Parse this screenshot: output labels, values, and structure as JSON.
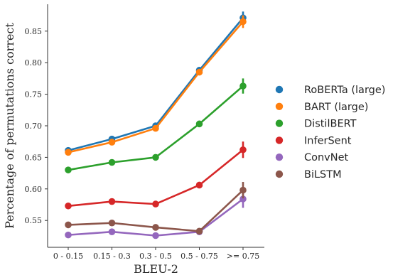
{
  "chart_data": {
    "type": "line",
    "title": "",
    "xlabel": "BLEU-2",
    "ylabel": "Percentage of permutations correct",
    "categories": [
      "0 - 0.15",
      "0.15 - 0.3",
      "0.3 - 0.5",
      "0.5 - 0.75",
      ">= 0.75"
    ],
    "yticks": [
      "0.55",
      "0.60",
      "0.65",
      "0.70",
      "0.75",
      "0.80",
      "0.85"
    ],
    "ylim": [
      0.515,
      0.885
    ],
    "grid": false,
    "legend_position": "right",
    "series": [
      {
        "name": "RoBERTa (large)",
        "color": "#1f77b4",
        "values": [
          0.661,
          0.679,
          0.7,
          0.788,
          0.871
        ],
        "error": [
          0.002,
          0.002,
          0.002,
          0.003,
          0.01
        ]
      },
      {
        "name": "BART (large)",
        "color": "#ff7f0e",
        "values": [
          0.658,
          0.674,
          0.696,
          0.785,
          0.865
        ],
        "error": [
          0.002,
          0.002,
          0.002,
          0.003,
          0.01
        ]
      },
      {
        "name": "DistilBERT",
        "color": "#2ca02c",
        "values": [
          0.63,
          0.642,
          0.65,
          0.703,
          0.763
        ],
        "error": [
          0.002,
          0.002,
          0.002,
          0.003,
          0.012
        ]
      },
      {
        "name": "InferSent",
        "color": "#d62728",
        "values": [
          0.573,
          0.58,
          0.576,
          0.606,
          0.662
        ],
        "error": [
          0.002,
          0.002,
          0.002,
          0.003,
          0.013
        ]
      },
      {
        "name": "ConvNet",
        "color": "#9467bd",
        "values": [
          0.527,
          0.532,
          0.526,
          0.532,
          0.584
        ],
        "error": [
          0.002,
          0.002,
          0.002,
          0.003,
          0.014
        ]
      },
      {
        "name": "BiLSTM",
        "color": "#8c564b",
        "values": [
          0.543,
          0.546,
          0.539,
          0.533,
          0.598
        ],
        "error": [
          0.002,
          0.002,
          0.002,
          0.003,
          0.013
        ]
      }
    ]
  }
}
